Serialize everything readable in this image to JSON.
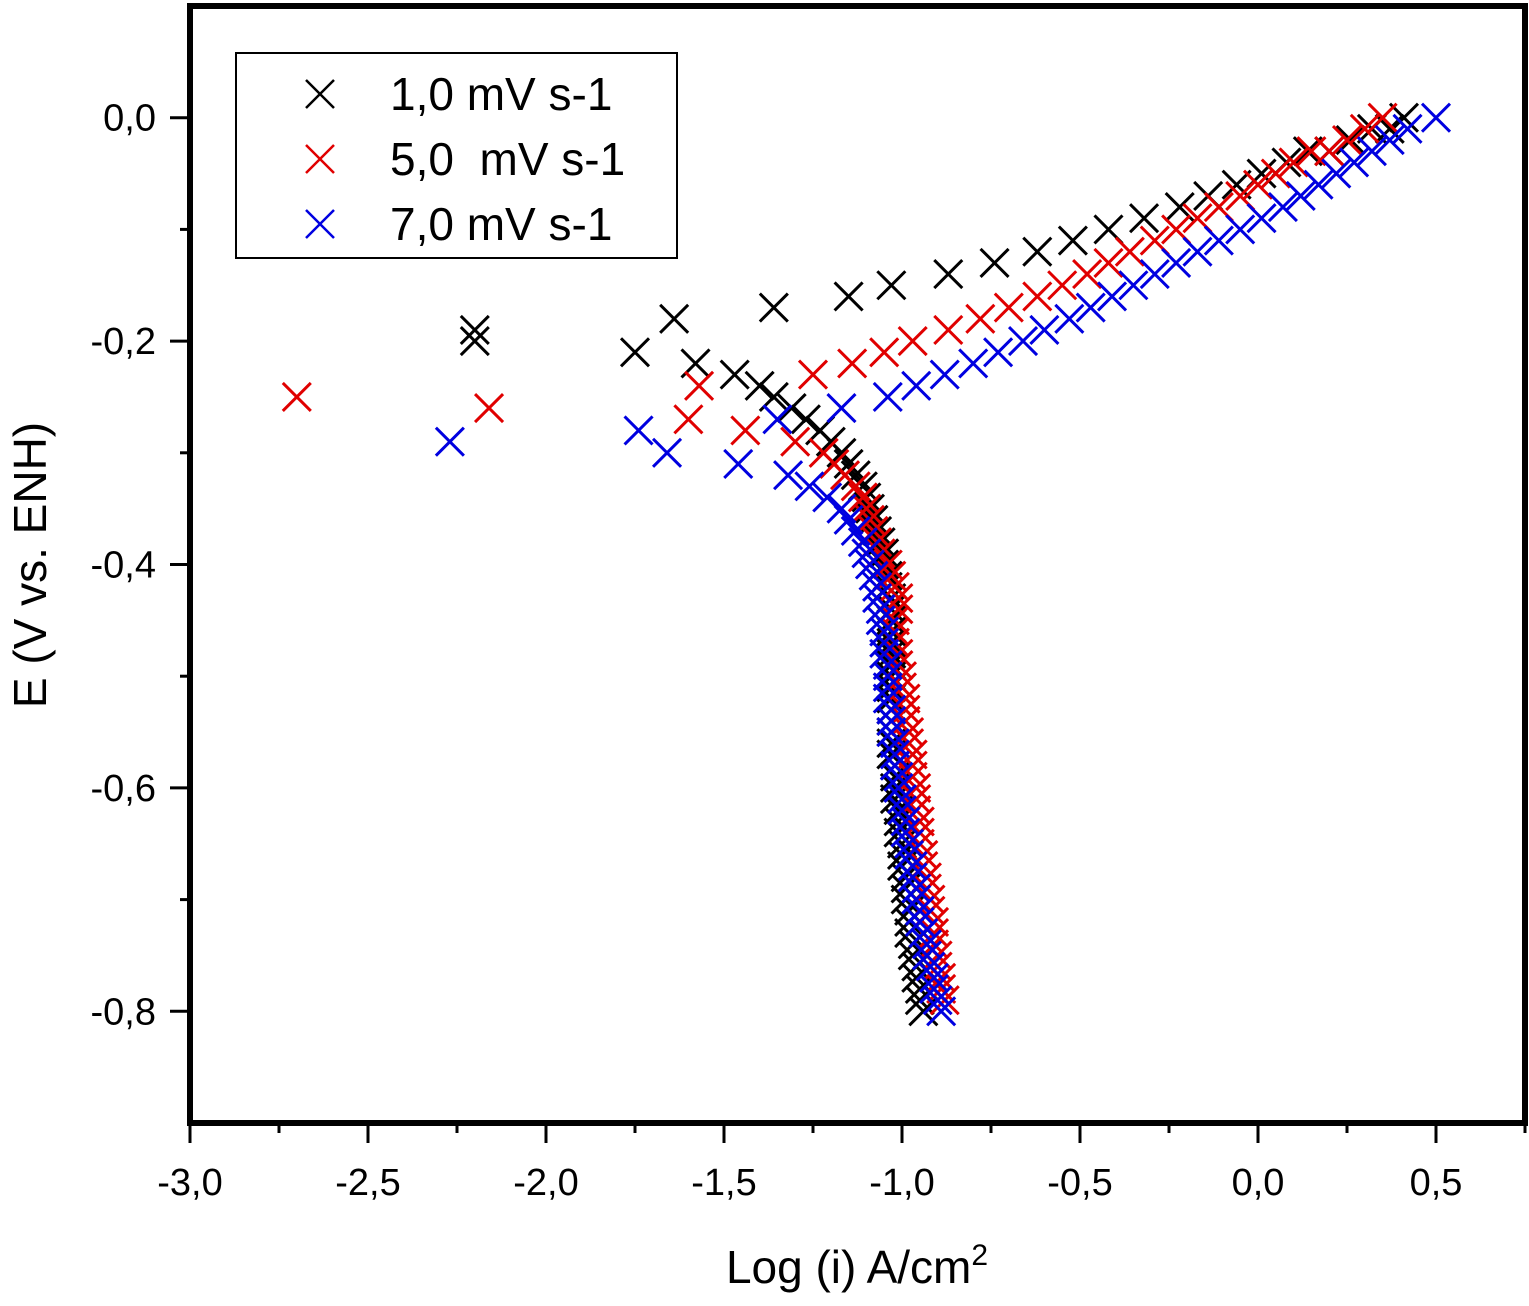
{
  "chart_data": {
    "type": "scatter",
    "title": "",
    "xlabel": "Log (i) A/cm",
    "xlabel_superscript": "2",
    "ylabel": "E (V vs. ENH)",
    "xlim": [
      -3.0,
      0.75
    ],
    "ylim": [
      -0.9,
      0.1
    ],
    "x_ticks": [
      -3.0,
      -2.5,
      -2.0,
      -1.5,
      -1.0,
      -0.5,
      0.0,
      0.5
    ],
    "x_tick_labels": [
      "-3,0",
      "-2,5",
      "-2,0",
      "-1,5",
      "-1,0",
      "-0,5",
      "0,0",
      "0,5"
    ],
    "x_minor_ticks": [
      -2.75,
      -2.25,
      -1.75,
      -1.25,
      -0.75,
      -0.25,
      0.25,
      0.75
    ],
    "y_ticks": [
      0.0,
      -0.2,
      -0.4,
      -0.6,
      -0.8
    ],
    "y_tick_labels": [
      "0,0",
      "-0,2",
      "-0,4",
      "-0,6",
      "-0,8"
    ],
    "y_minor_ticks": [
      -0.1,
      -0.3,
      -0.5,
      -0.7
    ],
    "grid": false,
    "legend_position": "top-left",
    "marker": "x",
    "series": [
      {
        "name": "1,0 mV s-1",
        "color": "#000000",
        "points": [
          [
            -2.2,
            -0.19
          ],
          [
            -2.2,
            -0.2
          ],
          [
            -1.75,
            -0.21
          ],
          [
            -1.64,
            -0.18
          ],
          [
            -1.58,
            -0.22
          ],
          [
            -1.47,
            -0.23
          ],
          [
            -1.4,
            -0.24
          ],
          [
            -1.36,
            -0.17
          ],
          [
            -1.36,
            -0.25
          ],
          [
            -1.31,
            -0.26
          ],
          [
            -1.27,
            -0.27
          ],
          [
            -1.23,
            -0.28
          ],
          [
            -1.2,
            -0.29
          ],
          [
            -1.17,
            -0.3
          ],
          [
            -1.15,
            -0.16
          ],
          [
            -1.15,
            -0.31
          ],
          [
            -1.13,
            -0.32
          ],
          [
            -1.11,
            -0.33
          ],
          [
            -1.1,
            -0.34
          ],
          [
            -1.09,
            -0.35
          ],
          [
            -1.08,
            -0.36
          ],
          [
            -1.07,
            -0.37
          ],
          [
            -1.06,
            -0.38
          ],
          [
            -1.05,
            -0.39
          ],
          [
            -1.05,
            -0.4
          ],
          [
            -1.04,
            -0.41
          ],
          [
            -1.04,
            -0.42
          ],
          [
            -1.03,
            -0.15
          ],
          [
            -1.03,
            -0.43
          ],
          [
            -1.03,
            -0.44
          ],
          [
            -1.03,
            -0.45
          ],
          [
            -1.03,
            -0.46
          ],
          [
            -1.03,
            -0.47
          ],
          [
            -1.03,
            -0.48
          ],
          [
            -1.03,
            -0.49
          ],
          [
            -1.03,
            -0.5
          ],
          [
            -1.03,
            -0.51
          ],
          [
            -1.03,
            -0.52
          ],
          [
            -1.03,
            -0.53
          ],
          [
            -1.03,
            -0.54
          ],
          [
            -1.03,
            -0.55
          ],
          [
            -1.03,
            -0.56
          ],
          [
            -1.03,
            -0.57
          ],
          [
            -1.02,
            -0.58
          ],
          [
            -1.02,
            -0.59
          ],
          [
            -1.02,
            -0.6
          ],
          [
            -1.02,
            -0.61
          ],
          [
            -1.01,
            -0.62
          ],
          [
            -1.01,
            -0.63
          ],
          [
            -1.01,
            -0.64
          ],
          [
            -1.0,
            -0.65
          ],
          [
            -1.0,
            -0.66
          ],
          [
            -1.0,
            -0.67
          ],
          [
            -0.99,
            -0.68
          ],
          [
            -0.99,
            -0.69
          ],
          [
            -0.99,
            -0.7
          ],
          [
            -0.98,
            -0.71
          ],
          [
            -0.98,
            -0.72
          ],
          [
            -0.98,
            -0.73
          ],
          [
            -0.97,
            -0.74
          ],
          [
            -0.97,
            -0.75
          ],
          [
            -0.96,
            -0.76
          ],
          [
            -0.96,
            -0.77
          ],
          [
            -0.95,
            -0.78
          ],
          [
            -0.95,
            -0.79
          ],
          [
            -0.94,
            -0.8
          ],
          [
            -0.87,
            -0.14
          ],
          [
            -0.74,
            -0.13
          ],
          [
            -0.62,
            -0.12
          ],
          [
            -0.52,
            -0.11
          ],
          [
            -0.42,
            -0.1
          ],
          [
            -0.32,
            -0.09
          ],
          [
            -0.22,
            -0.08
          ],
          [
            -0.14,
            -0.07
          ],
          [
            -0.06,
            -0.06
          ],
          [
            0.01,
            -0.05
          ],
          [
            0.08,
            -0.04
          ],
          [
            0.14,
            -0.03
          ],
          [
            0.2,
            -0.03
          ],
          [
            0.26,
            -0.02
          ],
          [
            0.32,
            -0.01
          ],
          [
            0.37,
            -0.01
          ],
          [
            0.41,
            0.0
          ]
        ]
      },
      {
        "name": "5,0  mV s-1",
        "color": "#e00000",
        "points": [
          [
            -2.7,
            -0.25
          ],
          [
            -2.16,
            -0.26
          ],
          [
            -1.6,
            -0.27
          ],
          [
            -1.57,
            -0.24
          ],
          [
            -1.44,
            -0.28
          ],
          [
            -1.3,
            -0.29
          ],
          [
            -1.25,
            -0.23
          ],
          [
            -1.22,
            -0.3
          ],
          [
            -1.19,
            -0.31
          ],
          [
            -1.16,
            -0.32
          ],
          [
            -1.14,
            -0.22
          ],
          [
            -1.13,
            -0.33
          ],
          [
            -1.11,
            -0.34
          ],
          [
            -1.1,
            -0.35
          ],
          [
            -1.09,
            -0.36
          ],
          [
            -1.08,
            -0.37
          ],
          [
            -1.07,
            -0.38
          ],
          [
            -1.06,
            -0.39
          ],
          [
            -1.05,
            -0.21
          ],
          [
            -1.04,
            -0.4
          ],
          [
            -1.03,
            -0.41
          ],
          [
            -1.02,
            -0.42
          ],
          [
            -1.01,
            -0.43
          ],
          [
            -1.01,
            -0.44
          ],
          [
            -1.02,
            -0.45
          ],
          [
            -1.02,
            -0.46
          ],
          [
            -1.02,
            -0.47
          ],
          [
            -1.01,
            -0.48
          ],
          [
            -1.01,
            -0.49
          ],
          [
            -1.0,
            -0.5
          ],
          [
            -1.0,
            -0.51
          ],
          [
            -0.99,
            -0.52
          ],
          [
            -0.99,
            -0.53
          ],
          [
            -0.99,
            -0.54
          ],
          [
            -0.98,
            -0.55
          ],
          [
            -0.98,
            -0.56
          ],
          [
            -0.97,
            -0.57
          ],
          [
            -0.97,
            -0.58
          ],
          [
            -0.97,
            -0.59
          ],
          [
            -0.96,
            -0.6
          ],
          [
            -0.96,
            -0.61
          ],
          [
            -0.96,
            -0.62
          ],
          [
            -0.95,
            -0.63
          ],
          [
            -0.95,
            -0.64
          ],
          [
            -0.95,
            -0.65
          ],
          [
            -0.94,
            -0.66
          ],
          [
            -0.94,
            -0.67
          ],
          [
            -0.93,
            -0.68
          ],
          [
            -0.93,
            -0.69
          ],
          [
            -0.92,
            -0.7
          ],
          [
            -0.92,
            -0.71
          ],
          [
            -0.91,
            -0.72
          ],
          [
            -0.91,
            -0.73
          ],
          [
            -0.91,
            -0.74
          ],
          [
            -0.9,
            -0.75
          ],
          [
            -0.9,
            -0.76
          ],
          [
            -0.89,
            -0.77
          ],
          [
            -0.89,
            -0.78
          ],
          [
            -0.88,
            -0.79
          ],
          [
            -0.97,
            -0.2
          ],
          [
            -0.87,
            -0.19
          ],
          [
            -0.78,
            -0.18
          ],
          [
            -0.7,
            -0.17
          ],
          [
            -0.62,
            -0.16
          ],
          [
            -0.55,
            -0.15
          ],
          [
            -0.48,
            -0.14
          ],
          [
            -0.42,
            -0.13
          ],
          [
            -0.36,
            -0.12
          ],
          [
            -0.29,
            -0.11
          ],
          [
            -0.23,
            -0.1
          ],
          [
            -0.17,
            -0.09
          ],
          [
            -0.11,
            -0.08
          ],
          [
            -0.05,
            -0.07
          ],
          [
            0.0,
            -0.06
          ],
          [
            0.05,
            -0.05
          ],
          [
            0.1,
            -0.04
          ],
          [
            0.15,
            -0.03
          ],
          [
            0.2,
            -0.03
          ],
          [
            0.25,
            -0.02
          ],
          [
            0.3,
            -0.01
          ],
          [
            0.35,
            0.0
          ]
        ]
      },
      {
        "name": "7,0 mV s-1",
        "color": "#0000e0",
        "points": [
          [
            -2.27,
            -0.29
          ],
          [
            -1.74,
            -0.28
          ],
          [
            -1.66,
            -0.3
          ],
          [
            -1.46,
            -0.31
          ],
          [
            -1.35,
            -0.27
          ],
          [
            -1.32,
            -0.32
          ],
          [
            -1.26,
            -0.33
          ],
          [
            -1.21,
            -0.34
          ],
          [
            -1.17,
            -0.26
          ],
          [
            -1.17,
            -0.35
          ],
          [
            -1.15,
            -0.36
          ],
          [
            -1.13,
            -0.37
          ],
          [
            -1.11,
            -0.38
          ],
          [
            -1.1,
            -0.39
          ],
          [
            -1.09,
            -0.4
          ],
          [
            -1.08,
            -0.41
          ],
          [
            -1.07,
            -0.42
          ],
          [
            -1.07,
            -0.43
          ],
          [
            -1.06,
            -0.44
          ],
          [
            -1.06,
            -0.45
          ],
          [
            -1.05,
            -0.46
          ],
          [
            -1.05,
            -0.47
          ],
          [
            -1.05,
            -0.48
          ],
          [
            -1.04,
            -0.49
          ],
          [
            -1.04,
            -0.5
          ],
          [
            -1.04,
            -0.51
          ],
          [
            -1.04,
            -0.52
          ],
          [
            -1.03,
            -0.53
          ],
          [
            -1.03,
            -0.54
          ],
          [
            -1.03,
            -0.55
          ],
          [
            -1.02,
            -0.56
          ],
          [
            -1.02,
            -0.57
          ],
          [
            -1.02,
            -0.58
          ],
          [
            -1.01,
            -0.59
          ],
          [
            -1.01,
            -0.6
          ],
          [
            -1.0,
            -0.61
          ],
          [
            -1.0,
            -0.62
          ],
          [
            -0.99,
            -0.63
          ],
          [
            -0.99,
            -0.64
          ],
          [
            -0.98,
            -0.65
          ],
          [
            -0.98,
            -0.66
          ],
          [
            -0.97,
            -0.67
          ],
          [
            -0.97,
            -0.68
          ],
          [
            -0.96,
            -0.69
          ],
          [
            -0.96,
            -0.7
          ],
          [
            -0.95,
            -0.71
          ],
          [
            -0.95,
            -0.72
          ],
          [
            -0.94,
            -0.73
          ],
          [
            -0.93,
            -0.74
          ],
          [
            -0.93,
            -0.75
          ],
          [
            -0.92,
            -0.76
          ],
          [
            -0.91,
            -0.77
          ],
          [
            -0.91,
            -0.78
          ],
          [
            -0.9,
            -0.79
          ],
          [
            -0.89,
            -0.8
          ],
          [
            -1.04,
            -0.25
          ],
          [
            -0.96,
            -0.24
          ],
          [
            -0.88,
            -0.23
          ],
          [
            -0.8,
            -0.22
          ],
          [
            -0.73,
            -0.21
          ],
          [
            -0.66,
            -0.2
          ],
          [
            -0.6,
            -0.19
          ],
          [
            -0.53,
            -0.18
          ],
          [
            -0.47,
            -0.17
          ],
          [
            -0.41,
            -0.16
          ],
          [
            -0.35,
            -0.15
          ],
          [
            -0.29,
            -0.14
          ],
          [
            -0.23,
            -0.13
          ],
          [
            -0.17,
            -0.12
          ],
          [
            -0.11,
            -0.11
          ],
          [
            -0.05,
            -0.1
          ],
          [
            0.01,
            -0.09
          ],
          [
            0.07,
            -0.08
          ],
          [
            0.12,
            -0.07
          ],
          [
            0.17,
            -0.06
          ],
          [
            0.22,
            -0.05
          ],
          [
            0.27,
            -0.04
          ],
          [
            0.32,
            -0.03
          ],
          [
            0.37,
            -0.02
          ],
          [
            0.42,
            -0.01
          ],
          [
            0.5,
            0.0
          ]
        ]
      }
    ]
  }
}
